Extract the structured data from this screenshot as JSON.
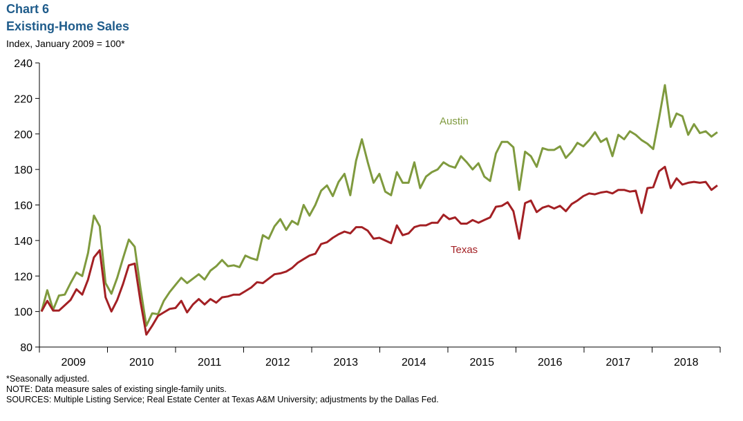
{
  "header": {
    "chart_label": "Chart 6",
    "title": "Existing-Home  Sales",
    "subtitle": "Index,  January 2009 = 100*"
  },
  "footer": {
    "note1": "*Seasonally adjusted.",
    "note2": "NOTE:  Data measure sales of existing single-family units.",
    "sources": "SOURCES:  Multiple Listing Service; Real Estate Center at Texas A&M University; adjustments by the Dallas Fed."
  },
  "chart_data": {
    "type": "line",
    "title": "Existing-Home  Sales",
    "subtitle": "Index,  January 2009 = 100*",
    "xlabel": "",
    "ylabel": "",
    "ylim": [
      80,
      240
    ],
    "yticks": [
      80,
      100,
      120,
      140,
      160,
      180,
      200,
      220,
      240
    ],
    "year_labels": [
      "2009",
      "2010",
      "2011",
      "2012",
      "2013",
      "2014",
      "2015",
      "2016",
      "2017",
      "2018"
    ],
    "x_start": "2009-01",
    "frequency": "monthly",
    "grid": false,
    "legend": "inline labels",
    "series": [
      {
        "name": "Austin",
        "color": "#7f9a3e",
        "values": [
          100,
          112,
          101,
          109,
          109.5,
          116,
          122,
          120,
          133,
          154,
          148,
          116,
          110,
          119,
          130,
          140.5,
          136.5,
          113,
          92,
          99,
          98.5,
          106,
          111,
          115,
          119,
          116,
          118.5,
          121,
          118,
          123,
          125.5,
          129,
          125.5,
          126,
          125,
          131.5,
          130,
          129,
          143,
          141,
          148,
          152,
          146,
          151,
          149,
          160,
          154,
          160,
          168,
          171,
          165,
          173,
          177.5,
          165.5,
          185,
          197,
          184,
          172.5,
          177.5,
          167.5,
          165.5,
          178.5,
          172.5,
          172.5,
          184,
          169.5,
          176,
          178.5,
          180,
          184,
          182,
          181,
          187.5,
          184,
          180,
          183.5,
          176,
          173.5,
          189,
          195.5,
          195.5,
          192.5,
          168.5,
          190,
          187.5,
          181.5,
          192,
          191,
          191,
          193,
          186.5,
          190,
          195,
          193,
          196.5,
          201,
          195.5,
          197.5,
          187.5,
          199.5,
          197,
          201.5,
          199.5,
          196.5,
          194.5,
          191.5,
          209,
          227.5,
          204,
          211.5,
          210,
          199.5,
          205.5,
          200.5,
          201.5,
          198.5,
          201
        ]
      },
      {
        "name": "Texas",
        "color": "#a32024",
        "values": [
          100,
          106,
          100.5,
          100.5,
          103.5,
          106.5,
          112.5,
          109.5,
          118,
          130.5,
          134.5,
          108,
          100,
          106.5,
          115.5,
          126,
          127,
          105.5,
          87,
          92,
          97.5,
          99.5,
          101.5,
          102,
          106,
          99.5,
          104,
          107,
          104,
          107,
          105,
          108,
          108.5,
          109.5,
          109.5,
          111.5,
          113.5,
          116.5,
          116,
          118.5,
          121,
          121.5,
          122.5,
          124.5,
          127.5,
          129.5,
          131.5,
          132.5,
          138,
          139,
          141.5,
          143.5,
          145,
          144,
          147.5,
          147.5,
          145.5,
          141,
          141.5,
          140,
          138.5,
          148.5,
          143,
          144,
          147.5,
          148.5,
          148.5,
          150,
          150,
          154.5,
          152,
          153,
          149.5,
          149.5,
          151.5,
          150,
          151.5,
          153,
          159,
          159.5,
          161.5,
          156.5,
          141,
          161,
          162.5,
          156,
          158.5,
          159.5,
          158,
          159.5,
          156.5,
          160.5,
          162.5,
          165,
          166.5,
          166,
          167,
          167.5,
          166.5,
          168.5,
          168.5,
          167.5,
          168,
          155.5,
          169.5,
          170,
          179,
          181.5,
          169.5,
          175,
          171.5,
          172.5,
          173,
          172.5,
          173,
          168.5,
          171
        ]
      }
    ],
    "annotations": [
      {
        "text": "Austin",
        "series": "Austin"
      },
      {
        "text": "Texas",
        "series": "Texas"
      }
    ]
  }
}
